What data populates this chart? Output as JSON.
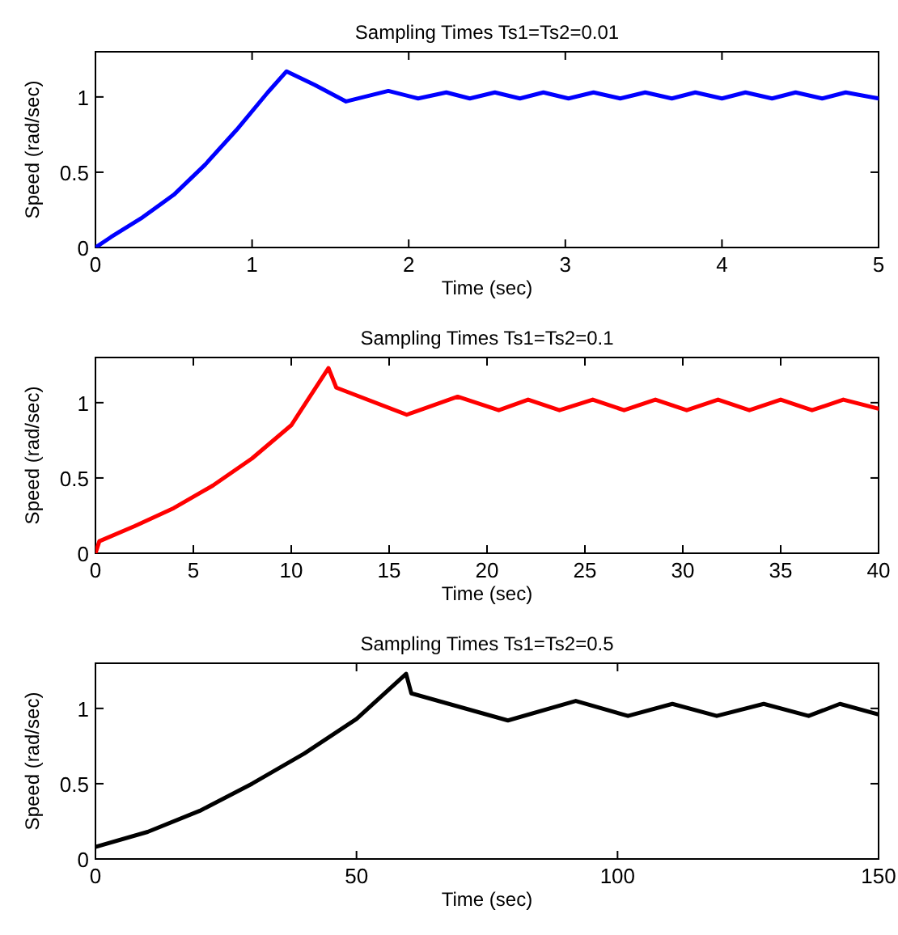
{
  "chart_data": [
    {
      "type": "line",
      "title": "Sampling Times Ts1=Ts2=0.01",
      "xlabel": "Time (sec)",
      "ylabel": "Speed (rad/sec)",
      "xlim": [
        0,
        5
      ],
      "xticks": [
        0,
        1,
        2,
        3,
        4,
        5
      ],
      "ylim": [
        0,
        1.3
      ],
      "yticks": [
        0,
        0.5,
        1
      ],
      "marker": "none",
      "line_style": "solid",
      "series": [
        {
          "color": "#0000ff",
          "x": [
            0,
            0.1,
            0.3,
            0.5,
            0.7,
            0.9,
            1.1,
            1.22,
            1.4,
            1.6,
            1.87,
            2.06,
            2.24,
            2.39,
            2.55,
            2.71,
            2.86,
            3.02,
            3.18,
            3.35,
            3.51,
            3.68,
            3.83,
            4.0,
            4.15,
            4.32,
            4.47,
            4.64,
            4.79,
            5.0
          ],
          "values": [
            0,
            0.07,
            0.2,
            0.35,
            0.55,
            0.78,
            1.03,
            1.17,
            1.08,
            0.97,
            1.04,
            0.99,
            1.03,
            0.99,
            1.03,
            0.99,
            1.03,
            0.99,
            1.03,
            0.99,
            1.03,
            0.99,
            1.03,
            0.99,
            1.03,
            0.99,
            1.03,
            0.99,
            1.03,
            0.99
          ]
        }
      ]
    },
    {
      "type": "line",
      "title": "Sampling Times Ts1=Ts2=0.1",
      "xlabel": "Time (sec)",
      "ylabel": "Speed (rad/sec)",
      "xlim": [
        0,
        40
      ],
      "xticks": [
        0,
        5,
        10,
        15,
        20,
        25,
        30,
        35,
        40
      ],
      "ylim": [
        0,
        1.3
      ],
      "yticks": [
        0,
        0.5,
        1
      ],
      "marker": "none",
      "line_style": "solid",
      "series": [
        {
          "color": "#ff0000",
          "x": [
            0,
            0.2,
            2,
            4,
            6,
            8,
            10,
            11.9,
            12.3,
            15.9,
            18.5,
            20.6,
            22.1,
            23.7,
            25.4,
            27.0,
            28.6,
            30.2,
            31.8,
            33.4,
            35.0,
            36.6,
            38.2,
            40
          ],
          "values": [
            0,
            0.08,
            0.18,
            0.3,
            0.45,
            0.63,
            0.85,
            1.23,
            1.1,
            0.92,
            1.04,
            0.95,
            1.02,
            0.95,
            1.02,
            0.95,
            1.02,
            0.95,
            1.02,
            0.95,
            1.02,
            0.95,
            1.02,
            0.96
          ]
        }
      ]
    },
    {
      "type": "line",
      "title": "Sampling Times Ts1=Ts2=0.5",
      "xlabel": "Time (sec)",
      "ylabel": "Speed (rad/sec)",
      "xlim": [
        0,
        150
      ],
      "xticks": [
        0,
        50,
        100,
        150
      ],
      "ylim": [
        0,
        1.3
      ],
      "yticks": [
        0,
        0.5,
        1
      ],
      "marker": "none",
      "line_style": "solid",
      "series": [
        {
          "color": "#000000",
          "x": [
            0,
            10,
            20,
            30,
            40,
            50,
            59.5,
            60.5,
            79,
            92,
            102,
            110.5,
            119,
            128,
            136.6,
            142.6,
            150
          ],
          "values": [
            0.08,
            0.18,
            0.32,
            0.5,
            0.7,
            0.93,
            1.23,
            1.1,
            0.92,
            1.05,
            0.95,
            1.03,
            0.95,
            1.03,
            0.95,
            1.03,
            0.96
          ]
        }
      ]
    }
  ]
}
